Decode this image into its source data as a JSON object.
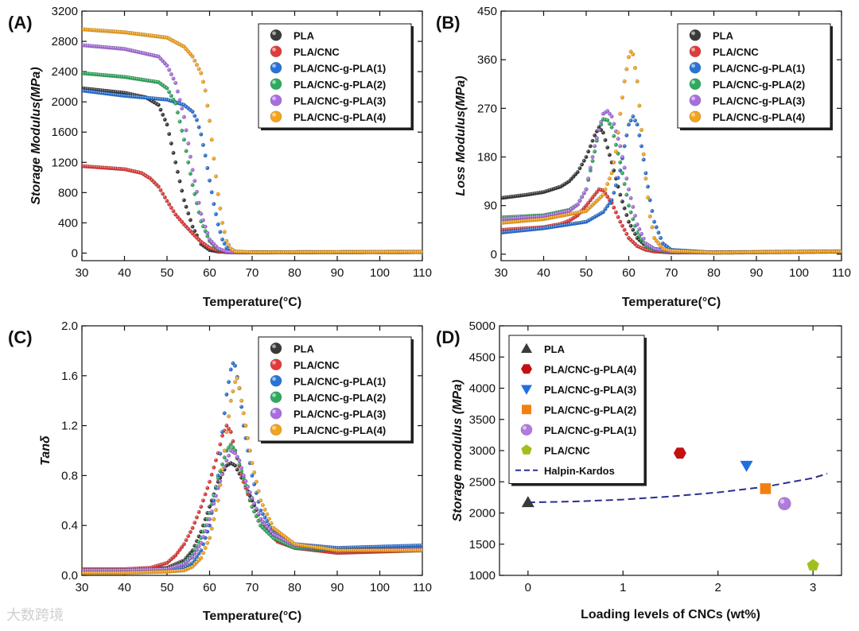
{
  "series_colors": {
    "PLA": "#3a3a3a",
    "PLA/CNC": "#e03b3b",
    "PLA/CNC-g-PLA(1)": "#2a73d6",
    "PLA/CNC-g-PLA(2)": "#2eaa5e",
    "PLA/CNC-g-PLA(3)": "#a86ee0",
    "PLA/CNC-g-PLA(4)": "#f4a31c",
    "PLA/CNC-g-PLA(4) D": "#c41010",
    "PLA/CNC-g-PLA(3) D": "#1f6fe0",
    "PLA/CNC-g-PLA(2) D": "#f27f12",
    "PLA/CNC-g-PLA(1) D": "#b07ade",
    "PLA/CNC D": "#a0bf1e",
    "Halpin-Kardos": "#2b2f8e"
  },
  "chart_data": [
    {
      "id": "A",
      "panel_label": "(A)",
      "type": "scatter",
      "xlabel": "Temperature(°C)",
      "ylabel": "Storage Modulus(MPa)",
      "xlim": [
        30,
        110
      ],
      "ylim": [
        -100,
        3200
      ],
      "xticks": [
        30,
        40,
        50,
        60,
        70,
        80,
        90,
        100,
        110
      ],
      "yticks": [
        0,
        400,
        800,
        1200,
        1600,
        2000,
        2400,
        2800,
        3200
      ],
      "legend": [
        "PLA",
        "PLA/CNC",
        "PLA/CNC-g-PLA(1)",
        "PLA/CNC-g-PLA(2)",
        "PLA/CNC-g-PLA(3)",
        "PLA/CNC-g-PLA(4)"
      ],
      "legend_position": "top-right",
      "series": [
        {
          "name": "PLA",
          "x": [
            30,
            40,
            45,
            48,
            50,
            52,
            54,
            56,
            58,
            60,
            62,
            66,
            70,
            110
          ],
          "y": [
            2180,
            2120,
            2060,
            1960,
            1700,
            1200,
            700,
            350,
            120,
            40,
            20,
            10,
            10,
            15
          ]
        },
        {
          "name": "PLA/CNC",
          "x": [
            30,
            40,
            44,
            46,
            48,
            50,
            52,
            54,
            56,
            58,
            60,
            62,
            64,
            70,
            110
          ],
          "y": [
            1150,
            1110,
            1060,
            990,
            880,
            690,
            510,
            380,
            260,
            150,
            70,
            30,
            10,
            10,
            15
          ]
        },
        {
          "name": "PLA/CNC-g-PLA(1)",
          "x": [
            30,
            40,
            50,
            54,
            56,
            57,
            58,
            59,
            60,
            61,
            62,
            63,
            64,
            66,
            70,
            110
          ],
          "y": [
            2150,
            2080,
            2030,
            1960,
            1870,
            1760,
            1570,
            1290,
            960,
            650,
            380,
            180,
            70,
            20,
            10,
            15
          ]
        },
        {
          "name": "PLA/CNC-g-PLA(2)",
          "x": [
            30,
            40,
            48,
            50,
            52,
            54,
            56,
            58,
            60,
            62,
            64,
            66,
            70,
            110
          ],
          "y": [
            2380,
            2330,
            2260,
            2180,
            1980,
            1500,
            900,
            420,
            160,
            50,
            20,
            10,
            10,
            15
          ]
        },
        {
          "name": "PLA/CNC-g-PLA(3)",
          "x": [
            30,
            40,
            48,
            50,
            52,
            54,
            56,
            58,
            60,
            62,
            64,
            66,
            70,
            110
          ],
          "y": [
            2750,
            2700,
            2600,
            2480,
            2250,
            1800,
            1100,
            520,
            180,
            60,
            20,
            10,
            10,
            15
          ]
        },
        {
          "name": "PLA/CNC-g-PLA(4)",
          "x": [
            30,
            40,
            50,
            54,
            56,
            58,
            59,
            60,
            61,
            62,
            63,
            64,
            65,
            66,
            70,
            110
          ],
          "y": [
            2960,
            2920,
            2850,
            2730,
            2600,
            2380,
            2150,
            1750,
            1250,
            780,
            400,
            160,
            60,
            20,
            10,
            15
          ]
        }
      ]
    },
    {
      "id": "B",
      "panel_label": "(B)",
      "type": "scatter",
      "xlabel": "Temperature(°C)",
      "ylabel": "Loss Modulus(MPa)",
      "xlim": [
        30,
        110
      ],
      "ylim": [
        -12,
        450
      ],
      "xticks": [
        30,
        40,
        50,
        60,
        70,
        80,
        90,
        100,
        110
      ],
      "yticks": [
        0,
        90,
        180,
        270,
        360,
        450
      ],
      "legend": [
        "PLA",
        "PLA/CNC",
        "PLA/CNC-g-PLA(1)",
        "PLA/CNC-g-PLA(2)",
        "PLA/CNC-g-PLA(3)",
        "PLA/CNC-g-PLA(4)"
      ],
      "legend_position": "top-right",
      "series": [
        {
          "name": "PLA",
          "x": [
            30,
            36,
            40,
            44,
            46,
            48,
            50,
            52,
            53,
            54,
            56,
            58,
            60,
            62,
            64,
            66,
            70,
            80,
            110
          ],
          "y": [
            104,
            110,
            115,
            125,
            135,
            152,
            180,
            220,
            235,
            225,
            170,
            110,
            60,
            30,
            15,
            10,
            5,
            3,
            5
          ]
        },
        {
          "name": "PLA/CNC",
          "x": [
            30,
            40,
            44,
            46,
            48,
            50,
            52,
            53,
            54,
            56,
            58,
            60,
            62,
            64,
            66,
            70,
            110
          ],
          "y": [
            45,
            50,
            56,
            62,
            72,
            90,
            110,
            120,
            118,
            95,
            60,
            30,
            15,
            8,
            5,
            3,
            5
          ]
        },
        {
          "name": "PLA/CNC-g-PLA(1)",
          "x": [
            30,
            40,
            50,
            54,
            56,
            58,
            59,
            60,
            61,
            62,
            63,
            64,
            65,
            66,
            68,
            70,
            80,
            110
          ],
          "y": [
            40,
            48,
            60,
            78,
            100,
            155,
            200,
            240,
            255,
            240,
            200,
            150,
            100,
            60,
            20,
            8,
            3,
            5
          ]
        },
        {
          "name": "PLA/CNC-g-PLA(2)",
          "x": [
            30,
            40,
            46,
            48,
            50,
            52,
            53,
            54,
            55,
            56,
            58,
            60,
            62,
            64,
            66,
            70,
            80,
            110
          ],
          "y": [
            68,
            72,
            82,
            92,
            120,
            190,
            230,
            250,
            248,
            235,
            170,
            90,
            40,
            15,
            8,
            4,
            3,
            5
          ]
        },
        {
          "name": "PLA/CNC-g-PLA(3)",
          "x": [
            30,
            40,
            46,
            48,
            50,
            52,
            54,
            55,
            56,
            58,
            60,
            62,
            64,
            66,
            70,
            80,
            110
          ],
          "y": [
            65,
            70,
            80,
            92,
            120,
            200,
            260,
            265,
            255,
            200,
            120,
            55,
            20,
            10,
            4,
            3,
            5
          ]
        },
        {
          "name": "PLA/CNC-g-PLA(4)",
          "x": [
            30,
            40,
            50,
            54,
            56,
            57,
            58,
            59,
            60,
            60.5,
            61,
            62,
            63,
            64,
            65,
            66,
            68,
            70,
            80,
            110
          ],
          "y": [
            58,
            65,
            80,
            110,
            150,
            190,
            260,
            320,
            365,
            375,
            370,
            320,
            230,
            140,
            70,
            30,
            10,
            6,
            3,
            5
          ]
        }
      ]
    },
    {
      "id": "C",
      "panel_label": "(C)",
      "type": "scatter",
      "xlabel": "Temperature(°C)",
      "ylabel": "Tanδ",
      "xlim": [
        30,
        110
      ],
      "ylim": [
        0.0,
        2.0
      ],
      "xticks": [
        30,
        40,
        50,
        60,
        70,
        80,
        90,
        100,
        110
      ],
      "yticks": [
        0.0,
        0.4,
        0.8,
        1.2,
        1.6,
        2.0
      ],
      "legend": [
        "PLA",
        "PLA/CNC",
        "PLA/CNC-g-PLA(1)",
        "PLA/CNC-g-PLA(2)",
        "PLA/CNC-g-PLA(3)",
        "PLA/CNC-g-PLA(4)"
      ],
      "legend_position": "top-right",
      "series": [
        {
          "name": "PLA",
          "x": [
            30,
            40,
            46,
            50,
            54,
            56,
            58,
            60,
            62,
            64,
            65,
            66,
            68,
            70,
            72,
            75,
            80,
            90,
            110
          ],
          "y": [
            0.04,
            0.04,
            0.05,
            0.06,
            0.12,
            0.2,
            0.35,
            0.55,
            0.75,
            0.88,
            0.9,
            0.88,
            0.75,
            0.6,
            0.45,
            0.32,
            0.22,
            0.2,
            0.22
          ]
        },
        {
          "name": "PLA/CNC",
          "x": [
            30,
            40,
            46,
            50,
            52,
            54,
            56,
            58,
            60,
            62,
            63,
            64,
            65,
            66,
            68,
            70,
            72,
            76,
            80,
            90,
            110
          ],
          "y": [
            0.05,
            0.05,
            0.06,
            0.1,
            0.16,
            0.25,
            0.38,
            0.55,
            0.75,
            0.98,
            1.12,
            1.2,
            1.15,
            1.0,
            0.75,
            0.55,
            0.4,
            0.27,
            0.22,
            0.18,
            0.2
          ]
        },
        {
          "name": "PLA/CNC-g-PLA(1)",
          "x": [
            30,
            40,
            50,
            54,
            56,
            58,
            60,
            62,
            63,
            64,
            65,
            65.5,
            66,
            67,
            68,
            70,
            72,
            75,
            80,
            90,
            110
          ],
          "y": [
            0.03,
            0.03,
            0.04,
            0.06,
            0.1,
            0.2,
            0.4,
            0.8,
            1.15,
            1.45,
            1.65,
            1.7,
            1.68,
            1.5,
            1.2,
            0.8,
            0.52,
            0.35,
            0.25,
            0.22,
            0.24
          ]
        },
        {
          "name": "PLA/CNC-g-PLA(2)",
          "x": [
            30,
            40,
            50,
            54,
            56,
            58,
            60,
            62,
            64,
            65,
            66,
            68,
            70,
            72,
            75,
            80,
            90,
            110
          ],
          "y": [
            0.04,
            0.04,
            0.05,
            0.1,
            0.17,
            0.3,
            0.5,
            0.78,
            1.0,
            1.05,
            1.0,
            0.78,
            0.55,
            0.4,
            0.3,
            0.22,
            0.2,
            0.2
          ]
        },
        {
          "name": "PLA/CNC-g-PLA(3)",
          "x": [
            30,
            40,
            50,
            54,
            56,
            58,
            60,
            62,
            64,
            65,
            66,
            67,
            68,
            70,
            72,
            75,
            80,
            90,
            110
          ],
          "y": [
            0.04,
            0.04,
            0.05,
            0.09,
            0.15,
            0.26,
            0.45,
            0.7,
            0.92,
            1.0,
            0.98,
            0.92,
            0.8,
            0.62,
            0.45,
            0.33,
            0.24,
            0.2,
            0.21
          ]
        },
        {
          "name": "PLA/CNC-g-PLA(4)",
          "x": [
            30,
            40,
            50,
            54,
            56,
            58,
            60,
            62,
            63,
            64,
            65,
            66,
            66.5,
            67,
            68,
            70,
            72,
            75,
            80,
            90,
            110
          ],
          "y": [
            0.02,
            0.02,
            0.03,
            0.04,
            0.07,
            0.14,
            0.3,
            0.6,
            0.85,
            1.15,
            1.4,
            1.55,
            1.58,
            1.5,
            1.3,
            0.9,
            0.6,
            0.38,
            0.25,
            0.2,
            0.2
          ]
        }
      ]
    },
    {
      "id": "D",
      "panel_label": "(D)",
      "type": "scatter",
      "xlabel": "Loading levels of CNCs (wt%)",
      "ylabel": "Storage modulus (MPa)",
      "xlim": [
        -0.3,
        3.3
      ],
      "ylim": [
        1000,
        5000
      ],
      "xticks": [
        0,
        1,
        2,
        3
      ],
      "yticks": [
        1000,
        1500,
        2000,
        2500,
        3000,
        3500,
        4000,
        4500,
        5000
      ],
      "legend": [
        "PLA",
        "PLA/CNC-g-PLA(4)",
        "PLA/CNC-g-PLA(3)",
        "PLA/CNC-g-PLA(2)",
        "PLA/CNC-g-PLA(1)",
        "PLA/CNC",
        "Halpin-Kardos"
      ],
      "legend_position": "top-left",
      "points": [
        {
          "name": "PLA",
          "marker": "triangle-up",
          "x": 0.0,
          "y": 2170
        },
        {
          "name": "PLA/CNC-g-PLA(4)",
          "marker": "hexagon",
          "x": 1.6,
          "y": 2960
        },
        {
          "name": "PLA/CNC-g-PLA(3)",
          "marker": "triangle-down",
          "x": 2.3,
          "y": 2760
        },
        {
          "name": "PLA/CNC-g-PLA(2)",
          "marker": "square",
          "x": 2.5,
          "y": 2390
        },
        {
          "name": "PLA/CNC-g-PLA(1)",
          "marker": "circle",
          "x": 2.7,
          "y": 2150
        },
        {
          "name": "PLA/CNC",
          "marker": "pentagon",
          "x": 3.0,
          "y": 1160
        }
      ],
      "fit": {
        "name": "Halpin-Kardos",
        "style": "dashed",
        "x": [
          0,
          0.5,
          1.0,
          1.5,
          2.0,
          2.5,
          3.0,
          3.15
        ],
        "y": [
          2170,
          2185,
          2215,
          2265,
          2330,
          2420,
          2560,
          2630
        ]
      }
    }
  ],
  "watermark": "大数跨境"
}
